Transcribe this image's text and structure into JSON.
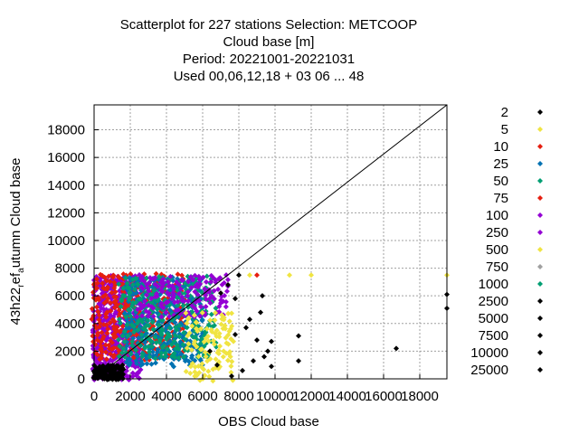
{
  "chart_data": {
    "type": "scatter",
    "title_lines": [
      "Scatterplot for  227 stations Selection: METCOOP",
      "Cloud base [m]",
      "Period: 20221001-20221031",
      "Used  00,06,12,18  + 03 06 ... 48"
    ],
    "xlabel": "OBS Cloud base",
    "ylabel_main": "43h22",
    "ylabel_sub1": "r",
    "ylabel_mid": "ef",
    "ylabel_sub2": "a",
    "ylabel_end": "utumn Cloud base",
    "xlim": [
      0,
      19500
    ],
    "ylim": [
      0,
      19800
    ],
    "xticks": [
      0,
      2000,
      4000,
      6000,
      8000,
      10000,
      12000,
      14000,
      16000,
      18000
    ],
    "yticks": [
      0,
      2000,
      4000,
      6000,
      8000,
      10000,
      12000,
      14000,
      16000,
      18000
    ],
    "grid": true,
    "legend_position": "right",
    "legend": [
      {
        "label": "2",
        "color": "#000000"
      },
      {
        "label": "5",
        "color": "#f0e442"
      },
      {
        "label": "10",
        "color": "#e51e10"
      },
      {
        "label": "25",
        "color": "#0072b2"
      },
      {
        "label": "50",
        "color": "#009e73"
      },
      {
        "label": "75",
        "color": "#e51e10"
      },
      {
        "label": "100",
        "color": "#9400d3"
      },
      {
        "label": "250",
        "color": "#9400d3"
      },
      {
        "label": "500",
        "color": "#f0e442"
      },
      {
        "label": "750",
        "color": "#a0a0a0"
      },
      {
        "label": "1000",
        "color": "#009e73"
      },
      {
        "label": "2500",
        "color": "#000000"
      },
      {
        "label": "5000",
        "color": "#000000"
      },
      {
        "label": "7500",
        "color": "#000000"
      },
      {
        "label": "10000",
        "color": "#000000"
      },
      {
        "label": "25000",
        "color": "#000000"
      }
    ],
    "diagonal": [
      [
        0,
        0
      ],
      [
        19500,
        19800
      ]
    ],
    "clusters": [
      {
        "name": "purple-low",
        "color": "#9400d3",
        "x": [
          0,
          2600
        ],
        "y": [
          0,
          7500
        ],
        "step": 180
      },
      {
        "name": "red-main",
        "color": "#e51e10",
        "x": [
          0,
          5000
        ],
        "y": [
          1500,
          7500
        ],
        "step": 260
      },
      {
        "name": "blue-main",
        "color": "#0072b2",
        "x": [
          1800,
          6000
        ],
        "y": [
          1000,
          7300
        ],
        "step": 240
      },
      {
        "name": "green-main",
        "color": "#009e73",
        "x": [
          1500,
          6800
        ],
        "y": [
          1600,
          7500
        ],
        "step": 300
      },
      {
        "name": "purple-upper",
        "color": "#9400d3",
        "x": [
          2500,
          7400
        ],
        "y": [
          4600,
          7500
        ],
        "step": 280
      },
      {
        "name": "yellow-right",
        "color": "#f0e442",
        "x": [
          5200,
          7600
        ],
        "y": [
          0,
          4800
        ],
        "step": 300
      },
      {
        "name": "black-base",
        "color": "#000000",
        "x": [
          0,
          1600
        ],
        "y": [
          0,
          1000
        ],
        "step": 120
      }
    ],
    "points": [
      {
        "x": 9000,
        "y": 7500,
        "color": "#e51e10"
      },
      {
        "x": 10800,
        "y": 7500,
        "color": "#f0e442"
      },
      {
        "x": 8600,
        "y": 7500,
        "color": "#f0e442"
      },
      {
        "x": 12000,
        "y": 7500,
        "color": "#f0e442"
      },
      {
        "x": 19500,
        "y": 7500,
        "color": "#f0e442"
      },
      {
        "x": 9300,
        "y": 6000,
        "color": "#000000"
      },
      {
        "x": 7800,
        "y": 5800,
        "color": "#000000"
      },
      {
        "x": 9200,
        "y": 4800,
        "color": "#000000"
      },
      {
        "x": 8600,
        "y": 4300,
        "color": "#000000"
      },
      {
        "x": 8400,
        "y": 3700,
        "color": "#000000"
      },
      {
        "x": 7800,
        "y": 3200,
        "color": "#000000"
      },
      {
        "x": 9000,
        "y": 2800,
        "color": "#000000"
      },
      {
        "x": 9800,
        "y": 2700,
        "color": "#000000"
      },
      {
        "x": 11300,
        "y": 3100,
        "color": "#000000"
      },
      {
        "x": 9600,
        "y": 2000,
        "color": "#000000"
      },
      {
        "x": 9400,
        "y": 1600,
        "color": "#000000"
      },
      {
        "x": 8800,
        "y": 1300,
        "color": "#000000"
      },
      {
        "x": 11300,
        "y": 1300,
        "color": "#000000"
      },
      {
        "x": 9800,
        "y": 900,
        "color": "#000000"
      },
      {
        "x": 16700,
        "y": 2200,
        "color": "#000000"
      },
      {
        "x": 19500,
        "y": 6100,
        "color": "#000000"
      },
      {
        "x": 19500,
        "y": 5100,
        "color": "#000000"
      },
      {
        "x": 8200,
        "y": 600,
        "color": "#000000"
      },
      {
        "x": 7600,
        "y": 200,
        "color": "#000000"
      },
      {
        "x": 6800,
        "y": 1000,
        "color": "#000000"
      },
      {
        "x": 6400,
        "y": 2000,
        "color": "#000000"
      },
      {
        "x": 7000,
        "y": 6200,
        "color": "#000000"
      },
      {
        "x": 7400,
        "y": 6800,
        "color": "#000000"
      },
      {
        "x": 8000,
        "y": 7500,
        "color": "#000000"
      }
    ]
  }
}
